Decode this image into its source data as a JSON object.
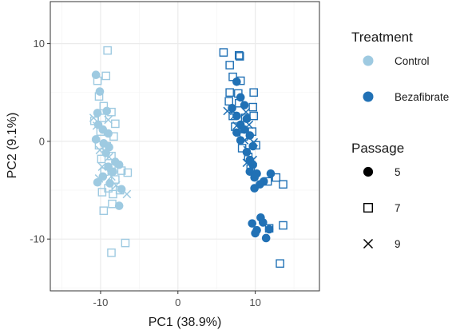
{
  "chart_data": {
    "type": "scatter",
    "xlabel": "PC1 (38.9%)",
    "ylabel": "PC2 (9.1%)",
    "xlim": [
      -16.5,
      18.3
    ],
    "ylim": [
      -15.3,
      14.3
    ],
    "x_ticks": [
      -10,
      0,
      10
    ],
    "y_ticks": [
      10,
      0,
      -10
    ],
    "grid": true,
    "legend_placement": "right",
    "colors": {
      "Control": "#9ecae1",
      "Bezafibrate": "#2171b5",
      "panel_background": "#ffffff",
      "grid_major": "#ebebeb",
      "grid_minor": "#f5f5f5",
      "panel_border": "#333333"
    },
    "shapes": {
      "5": "filled-circle",
      "7": "open-square",
      "9": "cross"
    },
    "legend": {
      "treatment_title": "Treatment",
      "treatment_items": [
        "Control",
        "Bezafibrate"
      ],
      "passage_title": "Passage",
      "passage_items": [
        "5",
        "7",
        "9"
      ]
    },
    "series": [
      {
        "treatment": "Control",
        "passage": "5",
        "points": [
          [
            -10.6,
            6.8
          ],
          [
            -10.1,
            5.1
          ],
          [
            -10.4,
            2.9
          ],
          [
            -9.2,
            3.1
          ],
          [
            -10.3,
            1.7
          ],
          [
            -9.7,
            1.2
          ],
          [
            -9.0,
            0.8
          ],
          [
            -10.6,
            0.2
          ],
          [
            -9.6,
            -0.2
          ],
          [
            -8.9,
            -0.6
          ],
          [
            -9.3,
            -1.2
          ],
          [
            -8.1,
            -2.1
          ],
          [
            -9.0,
            -2.6
          ],
          [
            -7.6,
            -2.4
          ],
          [
            -8.4,
            -3.1
          ],
          [
            -10.4,
            -4.2
          ],
          [
            -9.7,
            -3.6
          ],
          [
            -8.8,
            -4.3
          ],
          [
            -7.3,
            -4.9
          ],
          [
            -7.6,
            -6.6
          ]
        ]
      },
      {
        "treatment": "Control",
        "passage": "7",
        "points": [
          [
            -9.1,
            9.3
          ],
          [
            -9.3,
            6.7
          ],
          [
            -10.4,
            6.2
          ],
          [
            -10.2,
            4.6
          ],
          [
            -9.6,
            3.6
          ],
          [
            -8.6,
            3.0
          ],
          [
            -10.8,
            2.1
          ],
          [
            -9.8,
            2.4
          ],
          [
            -8.1,
            1.8
          ],
          [
            -10.0,
            1.0
          ],
          [
            -8.3,
            0.5
          ],
          [
            -9.2,
            -0.5
          ],
          [
            -10.2,
            -0.4
          ],
          [
            -8.6,
            -1.5
          ],
          [
            -9.9,
            -1.8
          ],
          [
            -8.6,
            -2.7
          ],
          [
            -9.5,
            -3.1
          ],
          [
            -7.3,
            -3.0
          ],
          [
            -6.5,
            -3.2
          ],
          [
            -8.1,
            -3.9
          ],
          [
            -9.0,
            -4.8
          ],
          [
            -8.4,
            -5.4
          ],
          [
            -7.5,
            -5.0
          ],
          [
            -9.8,
            -5.2
          ],
          [
            -8.5,
            -6.4
          ],
          [
            -9.6,
            -7.1
          ],
          [
            -8.6,
            -11.4
          ],
          [
            -6.8,
            -10.4
          ]
        ]
      },
      {
        "treatment": "Control",
        "passage": "9",
        "points": [
          [
            -10.9,
            2.4
          ],
          [
            -10.5,
            1.6
          ],
          [
            -9.0,
            2.2
          ],
          [
            -10.1,
            -0.9
          ],
          [
            -8.9,
            -1.6
          ],
          [
            -9.8,
            -2.6
          ],
          [
            -8.6,
            -3.6
          ],
          [
            -10.2,
            -3.8
          ],
          [
            -8.0,
            -4.5
          ],
          [
            -6.6,
            -5.4
          ]
        ]
      },
      {
        "treatment": "Bezafibrate",
        "passage": "5",
        "points": [
          [
            7.6,
            6.1
          ],
          [
            8.1,
            4.5
          ],
          [
            7.0,
            3.4
          ],
          [
            8.6,
            3.7
          ],
          [
            7.6,
            2.6
          ],
          [
            8.9,
            2.3
          ],
          [
            8.1,
            1.7
          ],
          [
            7.6,
            0.9
          ],
          [
            8.6,
            1.2
          ],
          [
            9.3,
            0.6
          ],
          [
            8.1,
            0.1
          ],
          [
            9.7,
            -0.5
          ],
          [
            8.9,
            -1.1
          ],
          [
            9.3,
            -1.9
          ],
          [
            9.7,
            -2.4
          ],
          [
            9.3,
            -3.1
          ],
          [
            10.2,
            -3.3
          ],
          [
            9.9,
            -3.7
          ],
          [
            11.1,
            -4.1
          ],
          [
            10.6,
            -4.4
          ],
          [
            12.0,
            -3.3
          ],
          [
            9.9,
            -4.8
          ],
          [
            10.7,
            -7.8
          ],
          [
            11.0,
            -8.3
          ],
          [
            9.6,
            -8.4
          ],
          [
            10.2,
            -9.1
          ],
          [
            11.8,
            -9.0
          ],
          [
            10.0,
            -9.4
          ],
          [
            11.4,
            -9.9
          ]
        ]
      },
      {
        "treatment": "Bezafibrate",
        "passage": "7",
        "points": [
          [
            5.9,
            9.1
          ],
          [
            6.7,
            7.8
          ],
          [
            7.9,
            8.8
          ],
          [
            8.0,
            8.7
          ],
          [
            7.1,
            6.6
          ],
          [
            8.1,
            6.2
          ],
          [
            6.7,
            5.0
          ],
          [
            7.8,
            4.9
          ],
          [
            9.8,
            5.0
          ],
          [
            6.6,
            4.1
          ],
          [
            7.9,
            3.9
          ],
          [
            9.7,
            3.5
          ],
          [
            7.1,
            2.6
          ],
          [
            8.7,
            2.4
          ],
          [
            9.8,
            2.6
          ],
          [
            7.4,
            1.5
          ],
          [
            8.5,
            0.5
          ],
          [
            9.6,
            1.0
          ],
          [
            8.3,
            -0.7
          ],
          [
            10.1,
            -0.4
          ],
          [
            9.1,
            -1.6
          ],
          [
            9.4,
            -2.8
          ],
          [
            11.6,
            -4.1
          ],
          [
            12.7,
            -3.7
          ],
          [
            13.6,
            -4.4
          ],
          [
            11.8,
            -8.9
          ],
          [
            13.6,
            -8.6
          ],
          [
            13.2,
            -12.5
          ]
        ]
      },
      {
        "treatment": "Bezafibrate",
        "passage": "9",
        "points": [
          [
            6.4,
            3.1
          ],
          [
            7.3,
            2.6
          ],
          [
            8.8,
            3.0
          ],
          [
            7.6,
            1.6
          ],
          [
            9.2,
            1.7
          ],
          [
            8.6,
            0.1
          ],
          [
            9.8,
            -0.1
          ],
          [
            9.0,
            -0.9
          ],
          [
            8.9,
            -2.2
          ],
          [
            9.7,
            -1.9
          ]
        ]
      }
    ]
  }
}
